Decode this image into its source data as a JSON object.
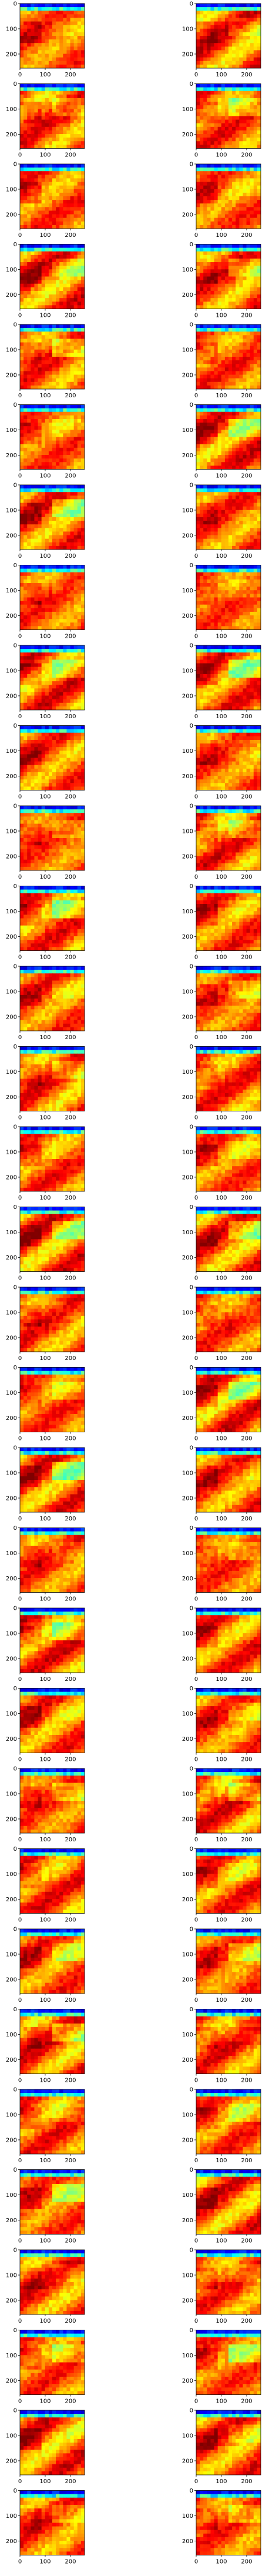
{
  "chart_data": {
    "type": "heatmap",
    "layout": {
      "rows": 32,
      "cols": 2
    },
    "panel_count": 64,
    "colormap": "jet",
    "colormap_stops": [
      "#00007f",
      "#0000ff",
      "#007fff",
      "#00ffff",
      "#7fff7f",
      "#ffff00",
      "#ff7f00",
      "#ff0000",
      "#7f0000"
    ],
    "axes": {
      "x": {
        "range": [
          0,
          256
        ],
        "ticks": [
          0,
          100,
          200
        ],
        "tick_labels": [
          "0",
          "100",
          "200"
        ]
      },
      "y": {
        "range": [
          0,
          256
        ],
        "inverted": true,
        "ticks": [
          0,
          100,
          200
        ],
        "tick_labels": [
          "0",
          "100",
          "200"
        ]
      }
    },
    "show_x_tick_labels": "bottom panel of each column only",
    "title": "",
    "xlabel": "",
    "ylabel": "",
    "grid": false,
    "legend": "none",
    "field_description_values": {
      "top_band_rows": [
        0,
        25
      ],
      "top_band_range": [
        0.05,
        0.35
      ],
      "body_range": [
        0.55,
        0.9
      ]
    }
  }
}
